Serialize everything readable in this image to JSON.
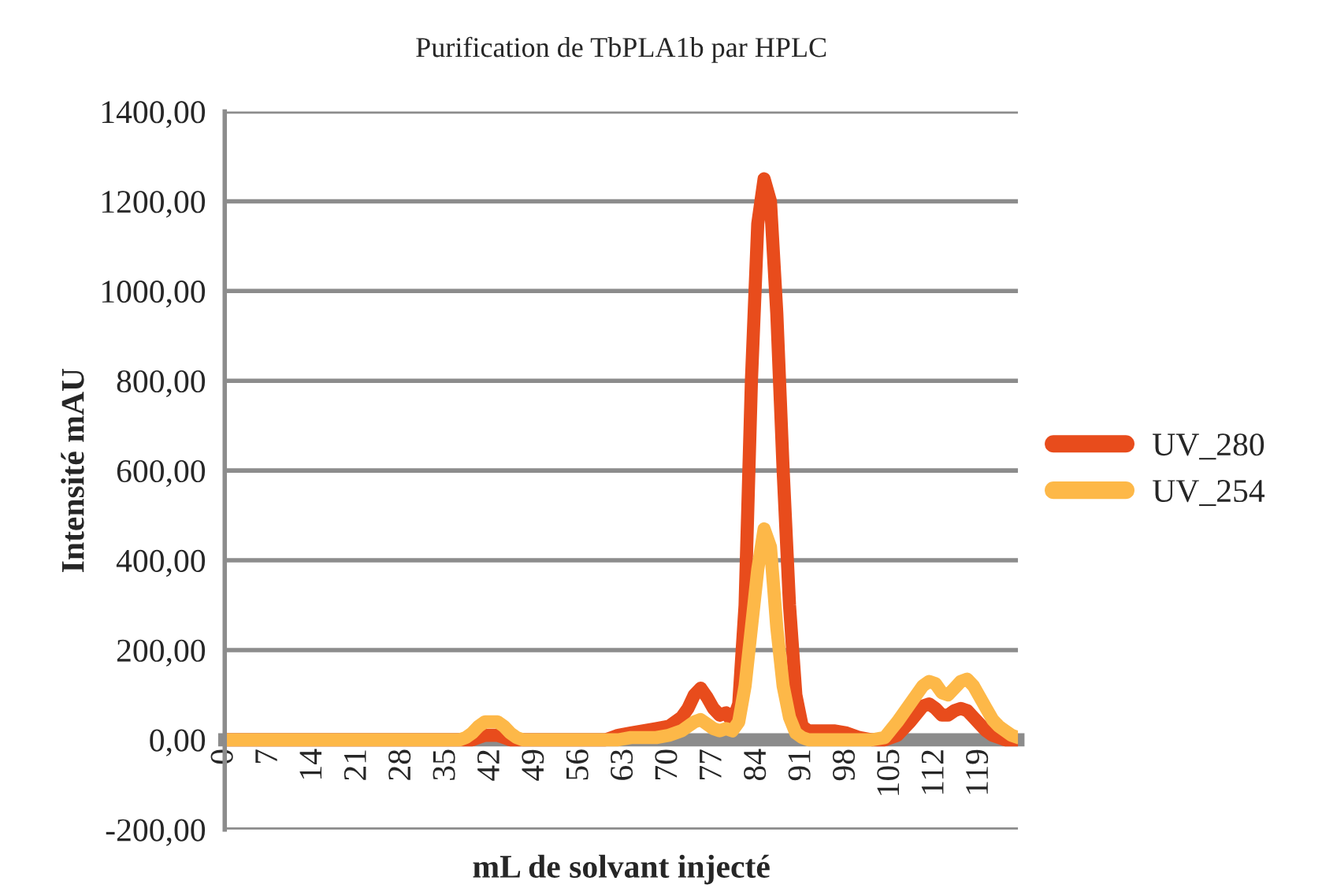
{
  "chart_data": {
    "type": "line",
    "title": "Purification de TbPLA1b par HPLC",
    "xlabel": "mL de solvant injecté",
    "ylabel": "Intensité mAU",
    "x": [
      0,
      10,
      20,
      30,
      37,
      38,
      39,
      40,
      41,
      42,
      43,
      44,
      45,
      46,
      47,
      50,
      55,
      60,
      61,
      62,
      64,
      66,
      68,
      70,
      72,
      73,
      74,
      75,
      76,
      77,
      78,
      79,
      80,
      81,
      82,
      83,
      84,
      85,
      86,
      87,
      88,
      89,
      90,
      91,
      92,
      94,
      96,
      98,
      100,
      102,
      104,
      106,
      108,
      110,
      111,
      112,
      113,
      114,
      115,
      116,
      117,
      118,
      119,
      120,
      121,
      122,
      123,
      124,
      125
    ],
    "series": [
      {
        "name": "UV_280",
        "color": "#e84c1c",
        "values": [
          0,
          0,
          0,
          0,
          0,
          0,
          0,
          5,
          10,
          10,
          10,
          5,
          0,
          0,
          0,
          0,
          0,
          0,
          5,
          10,
          15,
          20,
          25,
          30,
          50,
          70,
          100,
          115,
          95,
          70,
          55,
          60,
          40,
          80,
          300,
          800,
          1150,
          1250,
          1200,
          950,
          600,
          300,
          100,
          30,
          20,
          20,
          20,
          15,
          5,
          0,
          0,
          10,
          40,
          75,
          80,
          70,
          55,
          55,
          65,
          70,
          65,
          50,
          35,
          20,
          10,
          5,
          0,
          0,
          0
        ]
      },
      {
        "name": "UV_254",
        "color": "#fdb848",
        "values": [
          0,
          0,
          0,
          0,
          0,
          5,
          15,
          30,
          40,
          40,
          40,
          30,
          15,
          5,
          0,
          0,
          0,
          0,
          0,
          0,
          5,
          5,
          5,
          10,
          20,
          30,
          40,
          45,
          35,
          25,
          20,
          25,
          20,
          40,
          120,
          250,
          380,
          470,
          430,
          250,
          120,
          50,
          15,
          5,
          0,
          0,
          0,
          0,
          0,
          0,
          5,
          40,
          80,
          120,
          130,
          125,
          105,
          100,
          115,
          130,
          135,
          120,
          95,
          70,
          45,
          30,
          20,
          10,
          5
        ]
      }
    ],
    "xlim": [
      0,
      125
    ],
    "xticks": [
      0,
      7,
      14,
      21,
      28,
      35,
      42,
      49,
      56,
      63,
      70,
      77,
      84,
      91,
      98,
      105,
      112,
      119
    ],
    "ylim": [
      -200,
      1400
    ],
    "yticks": [
      {
        "value": -200,
        "label": "-200,00"
      },
      {
        "value": 0,
        "label": "0,00"
      },
      {
        "value": 200,
        "label": "200,00"
      },
      {
        "value": 400,
        "label": "400,00"
      },
      {
        "value": 600,
        "label": "600,00"
      },
      {
        "value": 800,
        "label": "800,00"
      },
      {
        "value": 1000,
        "label": "1000,00"
      },
      {
        "value": 1200,
        "label": "1200,00"
      },
      {
        "value": 1400,
        "label": "1400,00"
      }
    ],
    "grid": "y",
    "legend": "right",
    "marker": "none",
    "line_style": "solid"
  }
}
